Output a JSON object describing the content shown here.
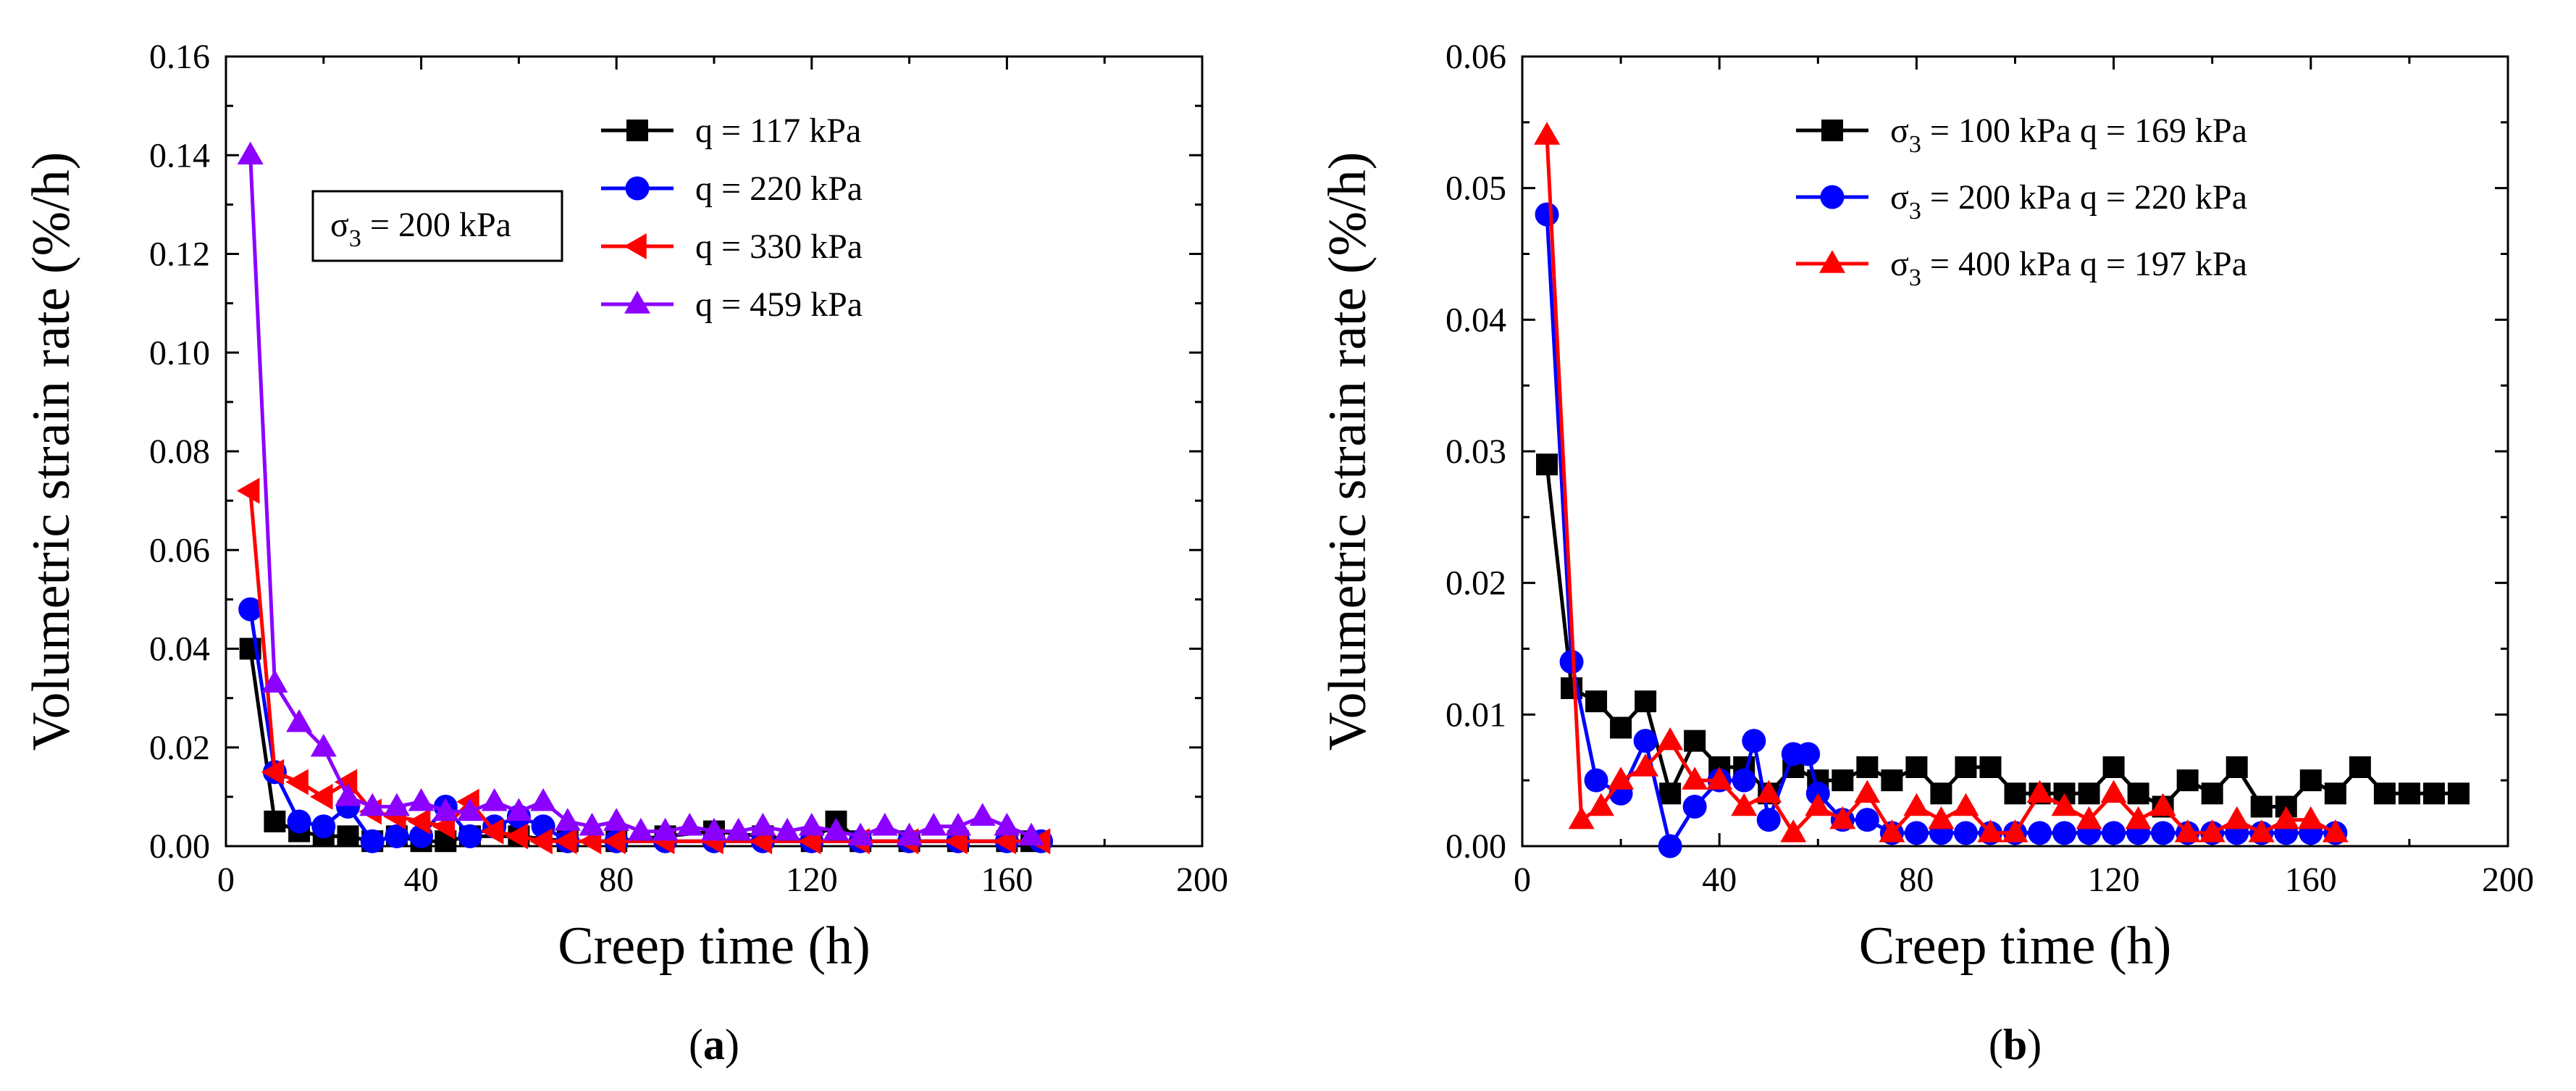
{
  "chart_data": [
    {
      "type": "line",
      "panel_label": "(a)",
      "panel_letter": "a",
      "xlabel": "Creep time (h)",
      "ylabel": "Volumetric strain rate (%/h)",
      "xlim": [
        0,
        200
      ],
      "ylim": [
        0,
        0.16
      ],
      "xticks": [
        "0",
        "40",
        "80",
        "120",
        "160",
        "200"
      ],
      "yticks": [
        "0.00",
        "0.02",
        "0.04",
        "0.06",
        "0.08",
        "0.10",
        "0.12",
        "0.14",
        "0.16"
      ],
      "annotation": {
        "symbol": "σ",
        "sub": "3",
        "rest": " = 200 kPa"
      },
      "legend_position": "top-right",
      "series": [
        {
          "name": "q = 117 kPa",
          "color": "#000000",
          "marker": "square",
          "x": [
            5,
            10,
            15,
            20,
            25,
            30,
            35,
            40,
            45,
            50,
            60,
            70,
            80,
            90,
            100,
            110,
            120,
            125,
            130,
            140,
            150,
            160,
            165
          ],
          "y": [
            0.04,
            0.005,
            0.003,
            0.002,
            0.002,
            0.001,
            0.002,
            0.001,
            0.001,
            0.002,
            0.002,
            0.001,
            0.001,
            0.002,
            0.003,
            0.002,
            0.001,
            0.005,
            0.001,
            0.001,
            0.001,
            0.001,
            0.001
          ]
        },
        {
          "name": "q = 220 kPa",
          "color": "#0000ff",
          "marker": "circle",
          "x": [
            5,
            10,
            15,
            20,
            25,
            30,
            35,
            40,
            45,
            50,
            55,
            60,
            65,
            70,
            80,
            90,
            100,
            110,
            120,
            130,
            140,
            150,
            160,
            167
          ],
          "y": [
            0.048,
            0.015,
            0.005,
            0.004,
            0.008,
            0.001,
            0.002,
            0.002,
            0.008,
            0.002,
            0.004,
            0.006,
            0.004,
            0.001,
            0.001,
            0.001,
            0.001,
            0.001,
            0.001,
            0.001,
            0.001,
            0.001,
            0.001,
            0.001
          ]
        },
        {
          "name": "q = 330 kPa",
          "color": "#ff0000",
          "marker": "triangle-left",
          "x": [
            5,
            10,
            15,
            20,
            25,
            30,
            35,
            40,
            45,
            50,
            55,
            60,
            65,
            70,
            75,
            80,
            90,
            100,
            110,
            120,
            130,
            140,
            150,
            160,
            167
          ],
          "y": [
            0.072,
            0.015,
            0.013,
            0.01,
            0.013,
            0.007,
            0.006,
            0.005,
            0.004,
            0.009,
            0.003,
            0.002,
            0.001,
            0.001,
            0.001,
            0.001,
            0.001,
            0.001,
            0.001,
            0.001,
            0.001,
            0.001,
            0.001,
            0.001,
            0.001
          ]
        },
        {
          "name": "q = 459 kPa",
          "color": "#8b00ff",
          "marker": "triangle-up",
          "x": [
            5,
            10,
            15,
            20,
            25,
            30,
            35,
            40,
            45,
            50,
            55,
            60,
            65,
            70,
            75,
            80,
            85,
            90,
            95,
            100,
            105,
            110,
            115,
            120,
            125,
            130,
            135,
            140,
            145,
            150,
            155,
            160,
            165
          ],
          "y": [
            0.14,
            0.033,
            0.025,
            0.02,
            0.01,
            0.008,
            0.008,
            0.009,
            0.007,
            0.007,
            0.009,
            0.007,
            0.009,
            0.005,
            0.004,
            0.005,
            0.003,
            0.003,
            0.004,
            0.003,
            0.003,
            0.004,
            0.003,
            0.004,
            0.003,
            0.002,
            0.004,
            0.002,
            0.004,
            0.004,
            0.006,
            0.004,
            0.002
          ]
        }
      ]
    },
    {
      "type": "line",
      "panel_label": "(b)",
      "panel_letter": "b",
      "xlabel": "Creep time (h)",
      "ylabel": "Volumetric strain rate (%/h)",
      "xlim": [
        0,
        200
      ],
      "ylim": [
        0,
        0.06
      ],
      "xticks": [
        "0",
        "40",
        "80",
        "120",
        "160",
        "200"
      ],
      "yticks": [
        "0.00",
        "0.01",
        "0.02",
        "0.03",
        "0.04",
        "0.05",
        "0.06"
      ],
      "legend_position": "top-right",
      "series": [
        {
          "name": "σ3 = 100 kPa  q = 169 kPa",
          "label_symbol": "σ",
          "label_sub": "3",
          "label_rest": " = 100 kPa  q = 169 kPa",
          "color": "#000000",
          "marker": "square",
          "x": [
            5,
            10,
            15,
            20,
            25,
            30,
            35,
            40,
            45,
            50,
            55,
            60,
            65,
            70,
            75,
            80,
            85,
            90,
            95,
            100,
            105,
            110,
            115,
            120,
            125,
            130,
            135,
            140,
            145,
            150,
            155,
            160,
            165,
            170,
            175,
            180,
            185,
            190
          ],
          "y": [
            0.029,
            0.012,
            0.011,
            0.009,
            0.011,
            0.004,
            0.008,
            0.006,
            0.006,
            0.004,
            0.006,
            0.005,
            0.005,
            0.006,
            0.005,
            0.006,
            0.004,
            0.006,
            0.006,
            0.004,
            0.004,
            0.004,
            0.004,
            0.006,
            0.004,
            0.003,
            0.005,
            0.004,
            0.006,
            0.003,
            0.003,
            0.005,
            0.004,
            0.006,
            0.004,
            0.004,
            0.004,
            0.004
          ]
        },
        {
          "name": "σ3 = 200 kPa  q = 220 kPa",
          "label_symbol": "σ",
          "label_sub": "3",
          "label_rest": " = 200 kPa  q = 220 kPa",
          "color": "#0000ff",
          "marker": "circle",
          "x": [
            5,
            10,
            15,
            20,
            25,
            30,
            35,
            40,
            45,
            47,
            50,
            55,
            58,
            60,
            65,
            70,
            75,
            80,
            85,
            90,
            95,
            100,
            105,
            110,
            115,
            120,
            125,
            130,
            135,
            140,
            145,
            150,
            155,
            160,
            165
          ],
          "y": [
            0.048,
            0.014,
            0.005,
            0.004,
            0.008,
            0.0,
            0.003,
            0.005,
            0.005,
            0.008,
            0.002,
            0.007,
            0.007,
            0.004,
            0.002,
            0.002,
            0.001,
            0.001,
            0.001,
            0.001,
            0.001,
            0.001,
            0.001,
            0.001,
            0.001,
            0.001,
            0.001,
            0.001,
            0.001,
            0.001,
            0.001,
            0.001,
            0.001,
            0.001,
            0.001
          ]
        },
        {
          "name": "σ3 = 400 kPa  q = 197 kPa",
          "label_symbol": "σ",
          "label_sub": "3",
          "label_rest": " = 400 kPa  q = 197 kPa",
          "color": "#ff0000",
          "marker": "triangle-up",
          "x": [
            5,
            12,
            16,
            20,
            25,
            30,
            35,
            40,
            45,
            50,
            55,
            60,
            65,
            70,
            75,
            80,
            85,
            90,
            95,
            100,
            105,
            110,
            115,
            120,
            125,
            130,
            135,
            140,
            145,
            150,
            155,
            160,
            165
          ],
          "y": [
            0.054,
            0.002,
            0.003,
            0.005,
            0.006,
            0.008,
            0.005,
            0.005,
            0.003,
            0.004,
            0.001,
            0.003,
            0.002,
            0.004,
            0.001,
            0.003,
            0.002,
            0.003,
            0.001,
            0.001,
            0.004,
            0.003,
            0.002,
            0.004,
            0.002,
            0.003,
            0.001,
            0.001,
            0.002,
            0.001,
            0.002,
            0.002,
            0.001
          ]
        }
      ]
    }
  ]
}
